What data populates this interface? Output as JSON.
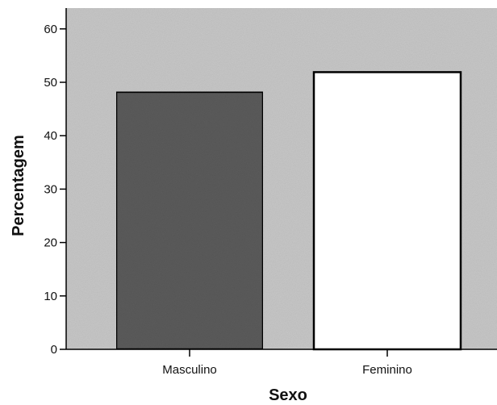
{
  "chart_data": {
    "type": "bar",
    "title": "",
    "xlabel": "Sexo",
    "ylabel": "Percentagem",
    "categories": [
      "Masculino",
      "Feminino"
    ],
    "values": [
      48.2,
      51.9
    ],
    "yticks": [
      0,
      10,
      20,
      30,
      40,
      50,
      60
    ],
    "ylim": [
      0,
      64
    ],
    "grid": false,
    "legend": "none",
    "colors": {
      "plot_background": "#c9c9c9",
      "bar_fills": [
        "#5c5c5c",
        "#ffffff"
      ],
      "bar_stroke": "#000000"
    }
  }
}
